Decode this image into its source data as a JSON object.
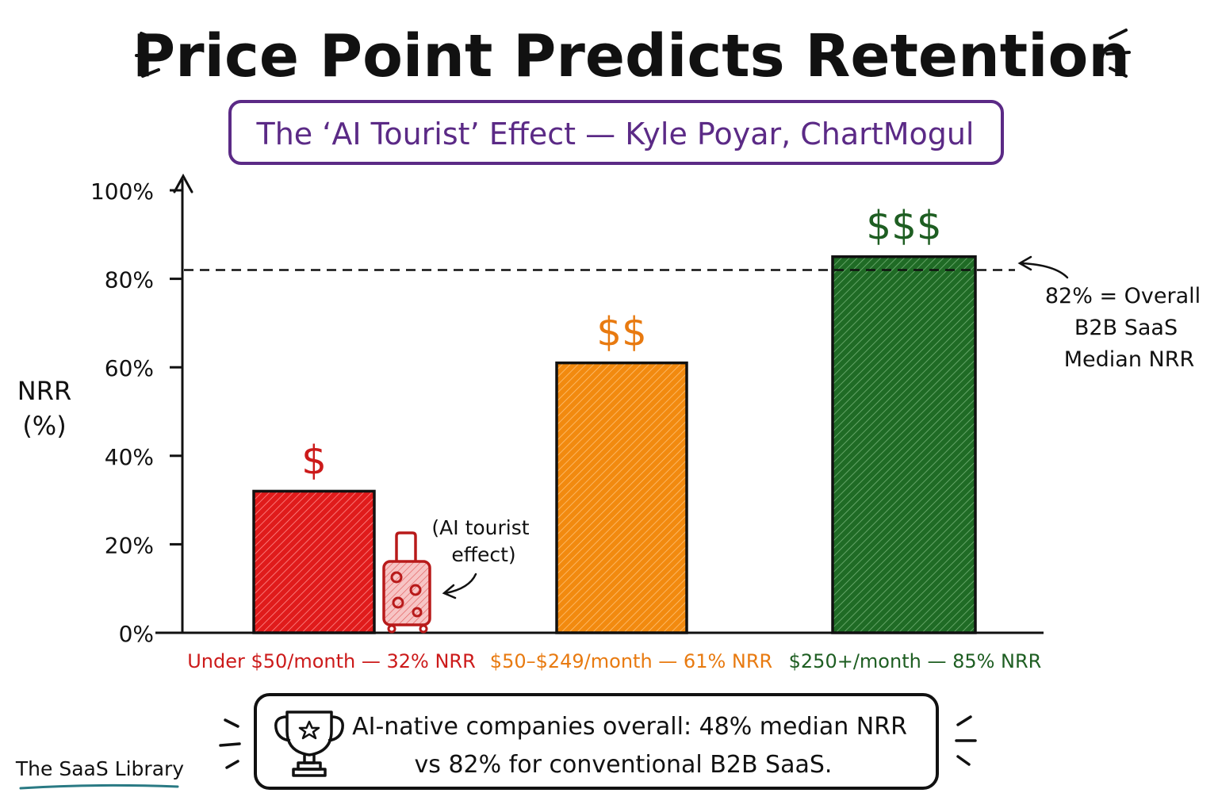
{
  "title": "Price Point Predicts Retention",
  "subtitle": "The ‘AI Tourist’ Effect — Kyle Poyar, ChartMogul",
  "y_axis_label_line1": "NRR",
  "y_axis_label_line2": "(%)",
  "colors": {
    "low": "#e01b1b",
    "mid": "#f28a0f",
    "high": "#1f6b25",
    "low_text": "#cc1a1a",
    "mid_text": "#e87a10",
    "high_text": "#1e5e22",
    "purple": "#5b2a86",
    "teal": "#2a7a84"
  },
  "chart_data": {
    "type": "bar",
    "categories": [
      "Under $50/month — 32% NRR",
      "$50–$249/month — 61% NRR",
      "$250+/month — 85% NRR"
    ],
    "values": [
      32,
      61,
      85
    ],
    "value_symbols": [
      "$",
      "$$",
      "$$$"
    ],
    "ylim": [
      0,
      100
    ],
    "yticks": [
      0,
      20,
      40,
      60,
      80,
      100
    ],
    "ytick_labels": [
      "0%",
      "20%",
      "40%",
      "60%",
      "80%",
      "100%"
    ],
    "reference_line": {
      "value": 82
    },
    "grid": false
  },
  "annotations": {
    "reference_line_1": "82% = Overall",
    "reference_line_2": "B2B SaaS",
    "reference_line_3": "Median NRR",
    "tourist_1": "(AI tourist",
    "tourist_2": "effect)"
  },
  "footer": {
    "line1": "AI-native companies overall: 48% median NRR",
    "line2": "vs 82% for conventional B2B SaaS.",
    "icon": "trophy-icon"
  },
  "brand": "The SaaS Library"
}
